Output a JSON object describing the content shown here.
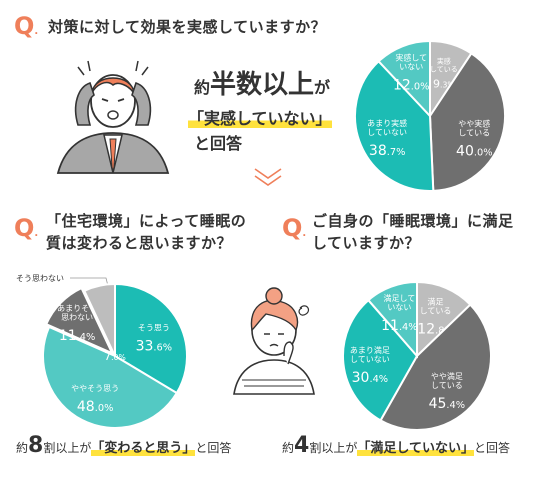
{
  "q_mark": "Q",
  "q_dot": ".",
  "top": {
    "question": "対策に対して効果を実感していますか？",
    "headline_pre": "約",
    "headline_main": "半数以上",
    "headline_post": "が",
    "headline_quote": "「実感していない」",
    "headline_tail": "と回答"
  },
  "left": {
    "question_line1": "「住宅環境」によって睡眠の",
    "question_line2": "質は変わると思いますか？",
    "outside_label": "そう思わない",
    "summary_pre": "約",
    "summary_num": "8",
    "summary_mid": "割以上が",
    "summary_quote": "「変わると思う」",
    "summary_tail": "と回答"
  },
  "right": {
    "question_line1": "ご自身の「睡眠環境」に満足",
    "question_line2": "していますか？",
    "summary_pre": "約",
    "summary_num": "4",
    "summary_mid": "割以上が",
    "summary_quote": "「満足していない」",
    "summary_tail": "と回答"
  },
  "colors": {
    "accent": "#ef7f5a",
    "teal": "#1cbcb4",
    "teal_light": "#53c9c3",
    "dark_gray": "#6f6f6f",
    "light_gray": "#bdbdbd",
    "highlight": "#ffe23d"
  },
  "chart_data": [
    {
      "type": "pie",
      "slices": [
        {
          "label": "実感している",
          "value": 9.3,
          "color": "#bdbdbd"
        },
        {
          "label": "やや実感している",
          "value": 40.0,
          "color": "#6f6f6f"
        },
        {
          "label": "あまり実感していない",
          "value": 38.7,
          "color": "#1cbcb4"
        },
        {
          "label": "実感していない",
          "value": 12.0,
          "color": "#53c9c3"
        }
      ]
    },
    {
      "type": "pie",
      "slices": [
        {
          "label": "そう思う",
          "value": 33.6,
          "color": "#1cbcb4"
        },
        {
          "label": "ややそう思う",
          "value": 48.0,
          "color": "#53c9c3"
        },
        {
          "label": "あまりそう思わない",
          "value": 11.4,
          "color": "#6f6f6f"
        },
        {
          "label": "そう思わない",
          "value": 7.0,
          "color": "#bdbdbd"
        }
      ]
    },
    {
      "type": "pie",
      "slices": [
        {
          "label": "満足している",
          "value": 12.8,
          "color": "#bdbdbd"
        },
        {
          "label": "やや満足している",
          "value": 45.4,
          "color": "#6f6f6f"
        },
        {
          "label": "あまり満足していない",
          "value": 30.4,
          "color": "#1cbcb4"
        },
        {
          "label": "満足していない",
          "value": 11.4,
          "color": "#53c9c3"
        }
      ]
    }
  ]
}
